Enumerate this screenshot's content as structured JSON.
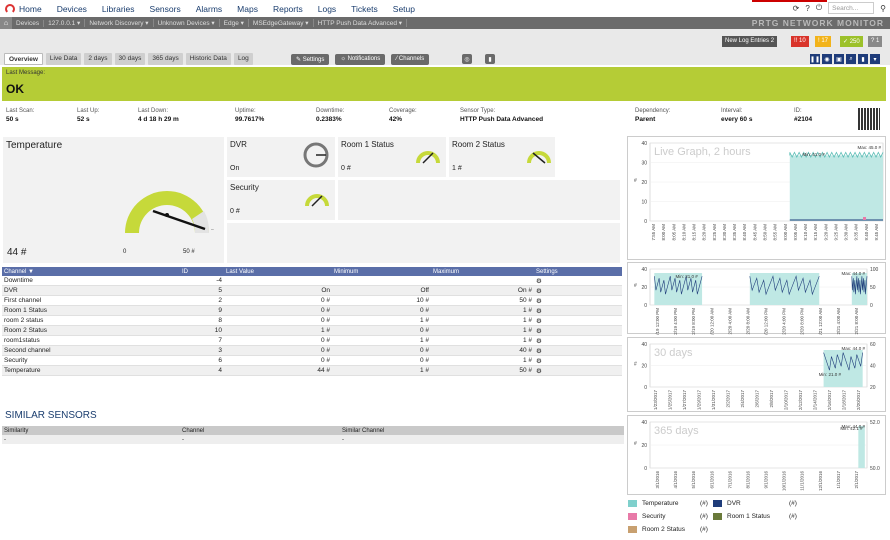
{
  "nav": {
    "items": [
      "Home",
      "Devices",
      "Libraries",
      "Sensors",
      "Alarms",
      "Maps",
      "Reports",
      "Logs",
      "Tickets",
      "Setup"
    ],
    "search_placeholder": "Search..."
  },
  "breadcrumb": [
    "Devices",
    "127.0.0.1 ▾",
    "Network Discovery ▾",
    "Unknown Devices ▾",
    "Edge ▾",
    "MSEdgeGateway ▾",
    "HTTP Push Data Advanced ▾"
  ],
  "brand": "PRTG NETWORK MONITOR",
  "status_pills": {
    "log_entries": "New Log Entries  2",
    "down": "!! 10",
    "warn": "! 17",
    "up": "✓ 250",
    "unknown": "? 1"
  },
  "tabs": [
    "Overview",
    "Live Data",
    "2 days",
    "30 days",
    "365 days",
    "Historic Data",
    "Log"
  ],
  "actions": {
    "settings": "Settings",
    "notifications": "Notifications",
    "channels": "Channels"
  },
  "message": {
    "label": "Last Message:",
    "value": "OK"
  },
  "info": [
    {
      "k": "Last Scan:",
      "v": "50 s"
    },
    {
      "k": "Last Up:",
      "v": "52 s"
    },
    {
      "k": "Last Down:",
      "v": "4 d 18 h 29 m"
    },
    {
      "k": "Uptime:",
      "v": "99.7617%"
    },
    {
      "k": "Downtime:",
      "v": "0.2383%"
    },
    {
      "k": "Coverage:",
      "v": "42%"
    },
    {
      "k": "Sensor Type:",
      "v": "HTTP Push Data Advanced"
    },
    {
      "k": "Dependency:",
      "v": "Parent"
    },
    {
      "k": "Interval:",
      "v": "every 60 s"
    },
    {
      "k": "ID:",
      "v": "#2104"
    }
  ],
  "gauges": {
    "temperature": {
      "title": "Temperature",
      "value": "44 #",
      "min": "0",
      "max": "50 #",
      "fraction": 0.88
    },
    "dvr": {
      "title": "DVR",
      "value": "On"
    },
    "room1": {
      "title": "Room 1 Status",
      "value": "0 #"
    },
    "room2": {
      "title": "Room 2 Status",
      "value": "1 #"
    },
    "security": {
      "title": "Security",
      "value": "0 #"
    }
  },
  "channels": {
    "headers": [
      "Channel ▼",
      "ID",
      "Last Value",
      "Minimum",
      "Maximum",
      "Settings"
    ],
    "rows": [
      {
        "name": "Downtime",
        "id": "-4",
        "last": "",
        "min": "",
        "max": "",
        "set": "⚙"
      },
      {
        "name": "DVR",
        "id": "5",
        "last": "On",
        "min": "Off",
        "max": "On #",
        "set": "⚙"
      },
      {
        "name": "First channel",
        "id": "2",
        "last": "0 #",
        "min": "10 #",
        "max": "50 #",
        "set": "⚙"
      },
      {
        "name": "Room 1 Status",
        "id": "9",
        "last": "0 #",
        "min": "0 #",
        "max": "1 #",
        "set": "⚙"
      },
      {
        "name": "room 2 status",
        "id": "8",
        "last": "0 #",
        "min": "1 #",
        "max": "1 #",
        "set": "⚙"
      },
      {
        "name": "Room 2 Status",
        "id": "10",
        "last": "1 #",
        "min": "0 #",
        "max": "1 #",
        "set": "⚙"
      },
      {
        "name": "room1status",
        "id": "7",
        "last": "0 #",
        "min": "1 #",
        "max": "1 #",
        "set": "⚙"
      },
      {
        "name": "Second channel",
        "id": "3",
        "last": "0 #",
        "min": "0 #",
        "max": "40 #",
        "set": "⚙"
      },
      {
        "name": "Security",
        "id": "6",
        "last": "0 #",
        "min": "0 #",
        "max": "1 #",
        "set": "⚙"
      },
      {
        "name": "Temperature",
        "id": "4",
        "last": "44 #",
        "min": "1 #",
        "max": "50 #",
        "set": "⚙"
      }
    ]
  },
  "similar": {
    "title": "SIMILAR SENSORS",
    "headers": [
      "Similarity",
      "Channel",
      "Similar Channel"
    ],
    "row": [
      "-",
      "-",
      "-"
    ]
  },
  "graphs": [
    {
      "title": "Live Graph, 2 hours",
      "yticks": [
        "40",
        "30",
        "20",
        "10",
        "0"
      ],
      "xticks": [
        "7:55 AM",
        "8:00 AM",
        "8:05 AM",
        "8:10 AM",
        "8:15 AM",
        "8:20 AM",
        "8:25 AM",
        "8:30 AM",
        "8:35 AM",
        "8:40 AM",
        "8:45 AM",
        "8:50 AM",
        "8:55 AM",
        "9:00 AM",
        "9:05 AM",
        "9:10 AM",
        "9:15 AM",
        "9:20 AM",
        "9:25 AM",
        "9:30 AM",
        "9:35 AM",
        "9:40 AM",
        "9:45 AM"
      ],
      "max": "Max: 45.0 #",
      "min": "Min: 41.0 #"
    },
    {
      "title": "",
      "yticks": [
        "40",
        "20",
        "0"
      ],
      "ryticks": [
        "100",
        "50",
        "0"
      ],
      "xticks": [
        "2/19 12:00 PM",
        "2/19 4:00 PM",
        "2/19 8:00 PM",
        "2/20 12:00 AM",
        "2/20 4:00 AM",
        "2/20 8:00 AM",
        "2/20 12:00 PM",
        "2/20 4:00 PM",
        "2/20 8:00 PM",
        "2/21 12:00 AM",
        "2/21 4:00 AM",
        "2/21 8:00 AM"
      ],
      "max": "Max: 44.0 #",
      "min": "Min: 21.0 #"
    },
    {
      "title": "30 days",
      "yticks": [
        "40",
        "20",
        "0"
      ],
      "ryticks": [
        "60",
        "40",
        "20"
      ],
      "xticks": [
        "1/23/2017",
        "1/25/2017",
        "1/27/2017",
        "1/29/2017",
        "1/31/2017",
        "2/2/2017",
        "2/4/2017",
        "2/6/2017",
        "2/8/2017",
        "2/10/2017",
        "2/12/2017",
        "2/14/2017",
        "2/16/2017",
        "2/18/2017",
        "2/20/2017"
      ],
      "max": "Max: 44.0 #",
      "min": "Min: 21.0 #"
    },
    {
      "title": "365 days",
      "yticks": [
        "40",
        "20",
        "0"
      ],
      "ryticks": [
        "52.0",
        "50.0"
      ],
      "xticks": [
        "3/1/2016",
        "4/1/2016",
        "5/1/2016",
        "6/1/2016",
        "7/1/2016",
        "8/1/2016",
        "9/1/2016",
        "10/1/2016",
        "11/1/2016",
        "12/1/2016",
        "1/1/2017",
        "2/1/2017"
      ],
      "max": "Max: 44.0 #",
      "min": "Min: 42.1 #"
    }
  ],
  "legend": [
    {
      "name": "Temperature",
      "unit": "(#)",
      "color": "#7fd0cc"
    },
    {
      "name": "DVR",
      "unit": "(#)",
      "color": "#1f3c7a"
    },
    {
      "name": "Security",
      "unit": "(#)",
      "color": "#e87aa8"
    },
    {
      "name": "Room 1 Status",
      "unit": "(#)",
      "color": "#6a7a3a"
    },
    {
      "name": "Room 2 Status",
      "unit": "(#)",
      "color": "#c8a070"
    }
  ]
}
